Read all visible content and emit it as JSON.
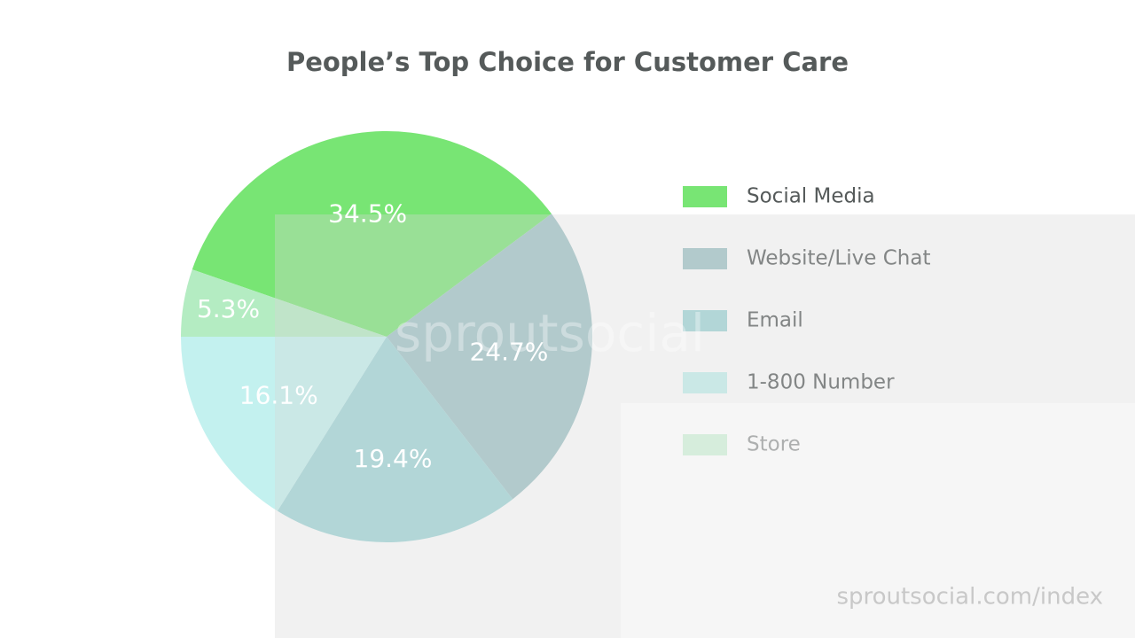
{
  "chart_data": {
    "type": "pie",
    "title": "People’s Top Choice for Customer Care",
    "categories": [
      "Social Media",
      "Website/Live Chat",
      "Email",
      "1-800 Number",
      "Store"
    ],
    "values": [
      34.5,
      24.7,
      19.4,
      16.1,
      5.3
    ],
    "value_labels": [
      "34.5%",
      "24.7%",
      "19.4%",
      "16.1%",
      "5.3%"
    ],
    "colors": [
      "#78e574",
      "#9fc3c6",
      "#9fd6d8",
      "#c3f1ef",
      "#b4ecc2"
    ],
    "legend": "right",
    "watermark": "sproutsocial",
    "source": "sproutsocial.com/index"
  }
}
